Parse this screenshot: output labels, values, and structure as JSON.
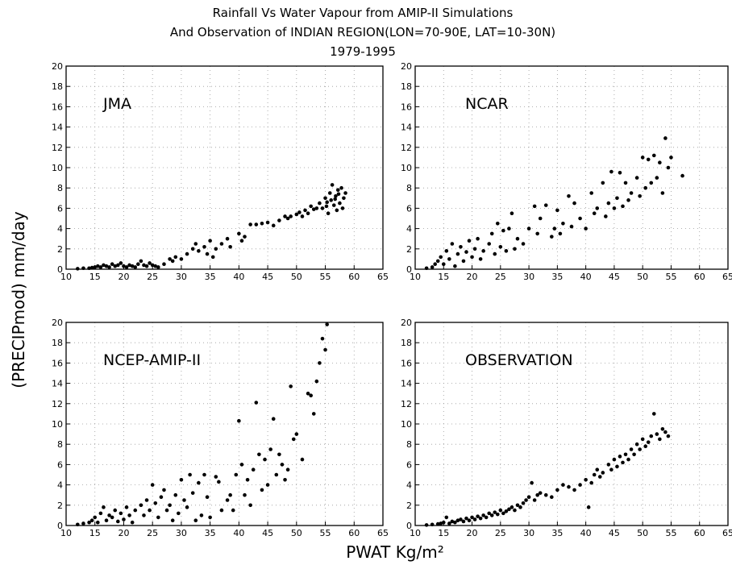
{
  "title_lines": [
    "Rainfall Vs Water Vapour from AMIP-II Simulations",
    "And Observation of INDIAN REGION(LON=70-90E, LAT=10-30N)",
    "1979-1995"
  ],
  "xlabel": "PWAT Kg/m²",
  "ylabel": "(PRECIPmod)  mm/day",
  "chart_data": [
    {
      "type": "scatter",
      "panel_label": "JMA",
      "xlim": [
        10,
        65
      ],
      "ylim": [
        0,
        20
      ],
      "x_ticks": [
        10,
        15,
        20,
        25,
        30,
        35,
        40,
        45,
        50,
        55,
        60,
        65
      ],
      "y_ticks": [
        0,
        2,
        4,
        6,
        8,
        10,
        12,
        14,
        16,
        18,
        20
      ],
      "grid": true,
      "points": [
        [
          12,
          0.05
        ],
        [
          13,
          0.1
        ],
        [
          14,
          0.1
        ],
        [
          14.5,
          0.15
        ],
        [
          15,
          0.2
        ],
        [
          15.5,
          0.3
        ],
        [
          16,
          0.2
        ],
        [
          16.5,
          0.4
        ],
        [
          17,
          0.3
        ],
        [
          17.5,
          0.2
        ],
        [
          18,
          0.5
        ],
        [
          18.5,
          0.3
        ],
        [
          19,
          0.4
        ],
        [
          19.5,
          0.6
        ],
        [
          20,
          0.3
        ],
        [
          20.5,
          0.2
        ],
        [
          21,
          0.4
        ],
        [
          21.5,
          0.3
        ],
        [
          22,
          0.2
        ],
        [
          22.5,
          0.5
        ],
        [
          23,
          0.8
        ],
        [
          23.5,
          0.4
        ],
        [
          24,
          0.3
        ],
        [
          24.5,
          0.6
        ],
        [
          25,
          0.4
        ],
        [
          25.5,
          0.3
        ],
        [
          26,
          0.2
        ],
        [
          27,
          0.5
        ],
        [
          28,
          1.0
        ],
        [
          28.5,
          0.8
        ],
        [
          29,
          1.2
        ],
        [
          30,
          1.0
        ],
        [
          31,
          1.5
        ],
        [
          32,
          2.0
        ],
        [
          32.5,
          2.5
        ],
        [
          33,
          1.8
        ],
        [
          34,
          2.2
        ],
        [
          34.5,
          1.5
        ],
        [
          35,
          2.8
        ],
        [
          35.5,
          1.2
        ],
        [
          36,
          2.0
        ],
        [
          37,
          2.5
        ],
        [
          38,
          3.0
        ],
        [
          38.5,
          2.2
        ],
        [
          40,
          3.5
        ],
        [
          40.5,
          2.8
        ],
        [
          41,
          3.2
        ],
        [
          42,
          4.4
        ],
        [
          43,
          4.4
        ],
        [
          44,
          4.5
        ],
        [
          45,
          4.6
        ],
        [
          46,
          4.3
        ],
        [
          47,
          4.8
        ],
        [
          48,
          5.2
        ],
        [
          48.5,
          5.0
        ],
        [
          49,
          5.2
        ],
        [
          50,
          5.4
        ],
        [
          50.5,
          5.6
        ],
        [
          51,
          5.2
        ],
        [
          51.5,
          5.8
        ],
        [
          52,
          5.5
        ],
        [
          52.5,
          6.2
        ],
        [
          53,
          5.9
        ],
        [
          53.5,
          6.0
        ],
        [
          54,
          6.5
        ],
        [
          54.5,
          6.0
        ],
        [
          55,
          7.0
        ],
        [
          55.2,
          6.2
        ],
        [
          55.5,
          5.5
        ],
        [
          55.8,
          7.5
        ],
        [
          56,
          6.8
        ],
        [
          56.2,
          8.3
        ],
        [
          56.5,
          6.3
        ],
        [
          56.8,
          7.2
        ],
        [
          57,
          5.8
        ],
        [
          57.2,
          7.8
        ],
        [
          57.5,
          6.5
        ],
        [
          57.8,
          8.0
        ],
        [
          58,
          6.0
        ],
        [
          58.2,
          7.0
        ],
        [
          58.5,
          7.5
        ],
        [
          56.7,
          6.9
        ],
        [
          55.3,
          6.6
        ],
        [
          57.3,
          7.4
        ]
      ]
    },
    {
      "type": "scatter",
      "panel_label": "NCAR",
      "xlim": [
        10,
        65
      ],
      "ylim": [
        0,
        20
      ],
      "x_ticks": [
        10,
        15,
        20,
        25,
        30,
        35,
        40,
        45,
        50,
        55,
        60,
        65
      ],
      "y_ticks": [
        0,
        2,
        4,
        6,
        8,
        10,
        12,
        14,
        16,
        18,
        20
      ],
      "grid": true,
      "points": [
        [
          12,
          0.1
        ],
        [
          13,
          0.2
        ],
        [
          13.5,
          0.5
        ],
        [
          14,
          0.8
        ],
        [
          14.5,
          1.2
        ],
        [
          15,
          0.5
        ],
        [
          15.5,
          1.8
        ],
        [
          16,
          1.0
        ],
        [
          16.5,
          2.5
        ],
        [
          17,
          0.3
        ],
        [
          17.5,
          1.5
        ],
        [
          18,
          2.2
        ],
        [
          18.5,
          0.8
        ],
        [
          19,
          1.7
        ],
        [
          19.5,
          2.8
        ],
        [
          20,
          1.2
        ],
        [
          20.5,
          2.0
        ],
        [
          21,
          3.0
        ],
        [
          21.5,
          1.0
        ],
        [
          22,
          1.8
        ],
        [
          23,
          2.5
        ],
        [
          23.5,
          3.5
        ],
        [
          24,
          1.5
        ],
        [
          24.5,
          4.5
        ],
        [
          25,
          2.2
        ],
        [
          25.5,
          3.8
        ],
        [
          26,
          1.8
        ],
        [
          26.5,
          4.0
        ],
        [
          27,
          5.5
        ],
        [
          27.5,
          2.0
        ],
        [
          28,
          3.0
        ],
        [
          29,
          2.5
        ],
        [
          30,
          4.0
        ],
        [
          31,
          6.2
        ],
        [
          31.5,
          3.5
        ],
        [
          32,
          5.0
        ],
        [
          33,
          6.3
        ],
        [
          34,
          3.2
        ],
        [
          34.5,
          4.0
        ],
        [
          35,
          5.8
        ],
        [
          35.5,
          3.5
        ],
        [
          36,
          4.5
        ],
        [
          37,
          7.2
        ],
        [
          37.5,
          4.2
        ],
        [
          38,
          6.5
        ],
        [
          39,
          5.0
        ],
        [
          40,
          4.0
        ],
        [
          41,
          7.5
        ],
        [
          41.5,
          5.5
        ],
        [
          42,
          6.0
        ],
        [
          43,
          8.5
        ],
        [
          43.5,
          5.2
        ],
        [
          44,
          6.5
        ],
        [
          44.5,
          9.6
        ],
        [
          45,
          6.0
        ],
        [
          45.5,
          7.0
        ],
        [
          46,
          9.5
        ],
        [
          46.5,
          6.2
        ],
        [
          47,
          8.5
        ],
        [
          47.5,
          6.8
        ],
        [
          48,
          7.5
        ],
        [
          49,
          9.0
        ],
        [
          49.5,
          7.2
        ],
        [
          50,
          11.0
        ],
        [
          50.5,
          8.0
        ],
        [
          51,
          10.8
        ],
        [
          51.5,
          8.5
        ],
        [
          52,
          11.2
        ],
        [
          52.5,
          9.0
        ],
        [
          53,
          10.5
        ],
        [
          53.5,
          7.5
        ],
        [
          54,
          12.9
        ],
        [
          54.5,
          10.0
        ],
        [
          55,
          11.0
        ],
        [
          57,
          9.2
        ]
      ]
    },
    {
      "type": "scatter",
      "panel_label": "NCEP-AMIP-II",
      "xlim": [
        10,
        65
      ],
      "ylim": [
        0,
        20
      ],
      "x_ticks": [
        10,
        15,
        20,
        25,
        30,
        35,
        40,
        45,
        50,
        55,
        60,
        65
      ],
      "y_ticks": [
        0,
        2,
        4,
        6,
        8,
        10,
        12,
        14,
        16,
        18,
        20
      ],
      "grid": true,
      "points": [
        [
          12,
          0.1
        ],
        [
          13,
          0.2
        ],
        [
          14,
          0.3
        ],
        [
          14.5,
          0.5
        ],
        [
          15,
          0.8
        ],
        [
          15.5,
          0.3
        ],
        [
          16,
          1.2
        ],
        [
          16.5,
          1.8
        ],
        [
          17,
          0.5
        ],
        [
          17.5,
          1.0
        ],
        [
          18,
          0.8
        ],
        [
          18.5,
          1.5
        ],
        [
          19,
          0.4
        ],
        [
          19.5,
          1.2
        ],
        [
          20,
          0.6
        ],
        [
          20.5,
          1.8
        ],
        [
          21,
          1.0
        ],
        [
          21.5,
          0.3
        ],
        [
          22,
          1.5
        ],
        [
          23,
          2.0
        ],
        [
          23.5,
          1.0
        ],
        [
          24,
          2.5
        ],
        [
          24.5,
          1.5
        ],
        [
          25,
          4.0
        ],
        [
          25.5,
          2.2
        ],
        [
          26,
          0.8
        ],
        [
          26.5,
          2.8
        ],
        [
          27,
          3.5
        ],
        [
          27.5,
          1.5
        ],
        [
          28,
          2.0
        ],
        [
          28.5,
          0.5
        ],
        [
          29,
          3.0
        ],
        [
          29.5,
          1.2
        ],
        [
          30,
          4.5
        ],
        [
          30.5,
          2.5
        ],
        [
          31,
          1.8
        ],
        [
          31.5,
          5.0
        ],
        [
          32,
          3.2
        ],
        [
          32.5,
          0.5
        ],
        [
          33,
          4.2
        ],
        [
          33.5,
          1.0
        ],
        [
          34,
          5.0
        ],
        [
          34.5,
          2.8
        ],
        [
          35,
          0.8
        ],
        [
          36,
          4.8
        ],
        [
          36.5,
          4.3
        ],
        [
          37,
          1.5
        ],
        [
          38,
          2.5
        ],
        [
          38.5,
          3.0
        ],
        [
          39,
          1.5
        ],
        [
          39.5,
          5.0
        ],
        [
          40,
          10.3
        ],
        [
          40.5,
          6.0
        ],
        [
          41,
          3.0
        ],
        [
          41.5,
          4.5
        ],
        [
          42,
          2.0
        ],
        [
          42.5,
          5.5
        ],
        [
          43,
          12.1
        ],
        [
          43.5,
          7.0
        ],
        [
          44,
          3.5
        ],
        [
          44.5,
          6.5
        ],
        [
          45,
          4.0
        ],
        [
          45.5,
          7.5
        ],
        [
          46,
          10.5
        ],
        [
          46.5,
          5.0
        ],
        [
          47,
          7.0
        ],
        [
          47.5,
          6.0
        ],
        [
          48,
          4.5
        ],
        [
          48.5,
          5.5
        ],
        [
          49,
          13.7
        ],
        [
          49.5,
          8.5
        ],
        [
          50,
          9.0
        ],
        [
          51,
          6.5
        ],
        [
          52,
          13.0
        ],
        [
          52.5,
          12.8
        ],
        [
          53,
          11.0
        ],
        [
          53.5,
          14.2
        ],
        [
          54,
          16.0
        ],
        [
          54.5,
          18.4
        ],
        [
          55,
          17.3
        ],
        [
          55.3,
          19.8
        ]
      ]
    },
    {
      "type": "scatter",
      "panel_label": "OBSERVATION",
      "xlim": [
        10,
        65
      ],
      "ylim": [
        0,
        20
      ],
      "x_ticks": [
        10,
        15,
        20,
        25,
        30,
        35,
        40,
        45,
        50,
        55,
        60,
        65
      ],
      "y_ticks": [
        0,
        2,
        4,
        6,
        8,
        10,
        12,
        14,
        16,
        18,
        20
      ],
      "grid": true,
      "points": [
        [
          12,
          0.05
        ],
        [
          13,
          0.1
        ],
        [
          14,
          0.15
        ],
        [
          14.5,
          0.2
        ],
        [
          15,
          0.3
        ],
        [
          15.5,
          0.8
        ],
        [
          16,
          0.2
        ],
        [
          16.5,
          0.4
        ],
        [
          17,
          0.3
        ],
        [
          17.5,
          0.5
        ],
        [
          18,
          0.6
        ],
        [
          18.5,
          0.4
        ],
        [
          19,
          0.7
        ],
        [
          19.5,
          0.5
        ],
        [
          20,
          0.8
        ],
        [
          20.5,
          0.6
        ],
        [
          21,
          0.9
        ],
        [
          21.5,
          0.7
        ],
        [
          22,
          1.0
        ],
        [
          22.5,
          0.8
        ],
        [
          23,
          1.2
        ],
        [
          23.5,
          1.0
        ],
        [
          24,
          1.3
        ],
        [
          24.5,
          1.1
        ],
        [
          25,
          1.5
        ],
        [
          25.5,
          1.2
        ],
        [
          26,
          1.4
        ],
        [
          26.5,
          1.6
        ],
        [
          27,
          1.8
        ],
        [
          27.5,
          1.5
        ],
        [
          28,
          2.0
        ],
        [
          28.5,
          1.8
        ],
        [
          29,
          2.2
        ],
        [
          29.5,
          2.5
        ],
        [
          30,
          2.8
        ],
        [
          30.5,
          4.2
        ],
        [
          31,
          2.5
        ],
        [
          31.5,
          3.0
        ],
        [
          32,
          3.2
        ],
        [
          33,
          3.0
        ],
        [
          34,
          2.8
        ],
        [
          35,
          3.5
        ],
        [
          36,
          4.0
        ],
        [
          37,
          3.8
        ],
        [
          38,
          3.5
        ],
        [
          39,
          4.0
        ],
        [
          40,
          4.5
        ],
        [
          40.5,
          1.8
        ],
        [
          41,
          4.2
        ],
        [
          41.5,
          5.0
        ],
        [
          42,
          5.5
        ],
        [
          42.5,
          4.8
        ],
        [
          43,
          5.2
        ],
        [
          44,
          6.0
        ],
        [
          44.5,
          5.5
        ],
        [
          45,
          6.5
        ],
        [
          45.5,
          5.8
        ],
        [
          46,
          6.8
        ],
        [
          46.5,
          6.2
        ],
        [
          47,
          7.0
        ],
        [
          47.5,
          6.5
        ],
        [
          48,
          7.5
        ],
        [
          48.5,
          7.0
        ],
        [
          49,
          8.0
        ],
        [
          49.5,
          7.5
        ],
        [
          50,
          8.5
        ],
        [
          50.5,
          7.8
        ],
        [
          51,
          8.2
        ],
        [
          51.5,
          8.8
        ],
        [
          52,
          11.0
        ],
        [
          52.5,
          9.0
        ],
        [
          53,
          8.5
        ],
        [
          53.5,
          9.5
        ],
        [
          54,
          9.2
        ],
        [
          54.5,
          8.8
        ]
      ]
    }
  ]
}
